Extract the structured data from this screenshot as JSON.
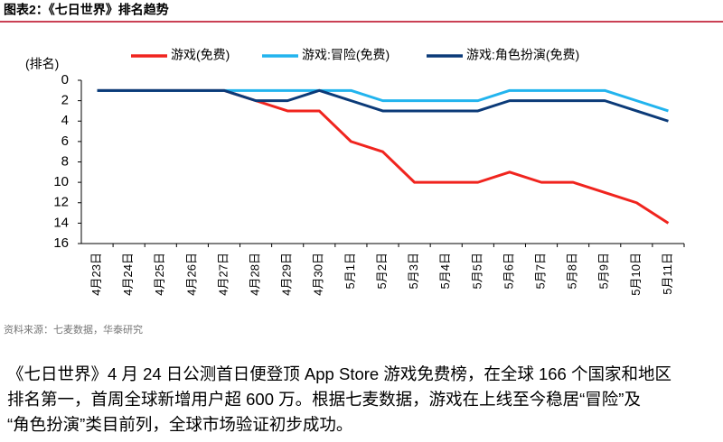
{
  "chart_data": {
    "type": "line",
    "title": "图表2：《七日世界》排名趋势",
    "y_label": "(排名)",
    "categories": [
      "4月23日",
      "4月24日",
      "4月25日",
      "4月26日",
      "4月27日",
      "4月28日",
      "4月29日",
      "4月30日",
      "5月1日",
      "5月2日",
      "5月3日",
      "5月4日",
      "5月5日",
      "5月6日",
      "5月7日",
      "5月8日",
      "5月9日",
      "5月10日",
      "5月11日"
    ],
    "series": [
      {
        "name": "游戏(免费)",
        "color": "#f0241e",
        "values": [
          1,
          1,
          1,
          1,
          1,
          2,
          3,
          3,
          6,
          7,
          10,
          10,
          10,
          9,
          10,
          10,
          11,
          12,
          14
        ]
      },
      {
        "name": "游戏:冒险(免费)",
        "color": "#22b4ee",
        "values": [
          1,
          1,
          1,
          1,
          1,
          1,
          1,
          1,
          1,
          2,
          2,
          2,
          2,
          1,
          1,
          1,
          1,
          2,
          3
        ]
      },
      {
        "name": "游戏:角色扮演(免费)",
        "color": "#0b3a78",
        "values": [
          1,
          1,
          1,
          1,
          1,
          2,
          2,
          1,
          2,
          3,
          3,
          3,
          3,
          2,
          2,
          2,
          2,
          3,
          4
        ]
      }
    ],
    "ylim": [
      0,
      16
    ],
    "yticks": [
      0,
      2,
      4,
      6,
      8,
      10,
      12,
      14,
      16
    ],
    "y_inverted": true,
    "grid": false,
    "source": "资料来源：七麦数据，华泰研究"
  },
  "body": {
    "lines": [
      "《七日世界》4 月 24 日公测首日便登顶 App Store 游戏免费榜，在全球 166 个国家和地区",
      "排名第一，首周全球新增用户超 600 万。根据七麦数据，游戏在上线至今稳居“冒险”及",
      "“角色扮演”类目前列，全球市场验证初步成功。"
    ]
  }
}
